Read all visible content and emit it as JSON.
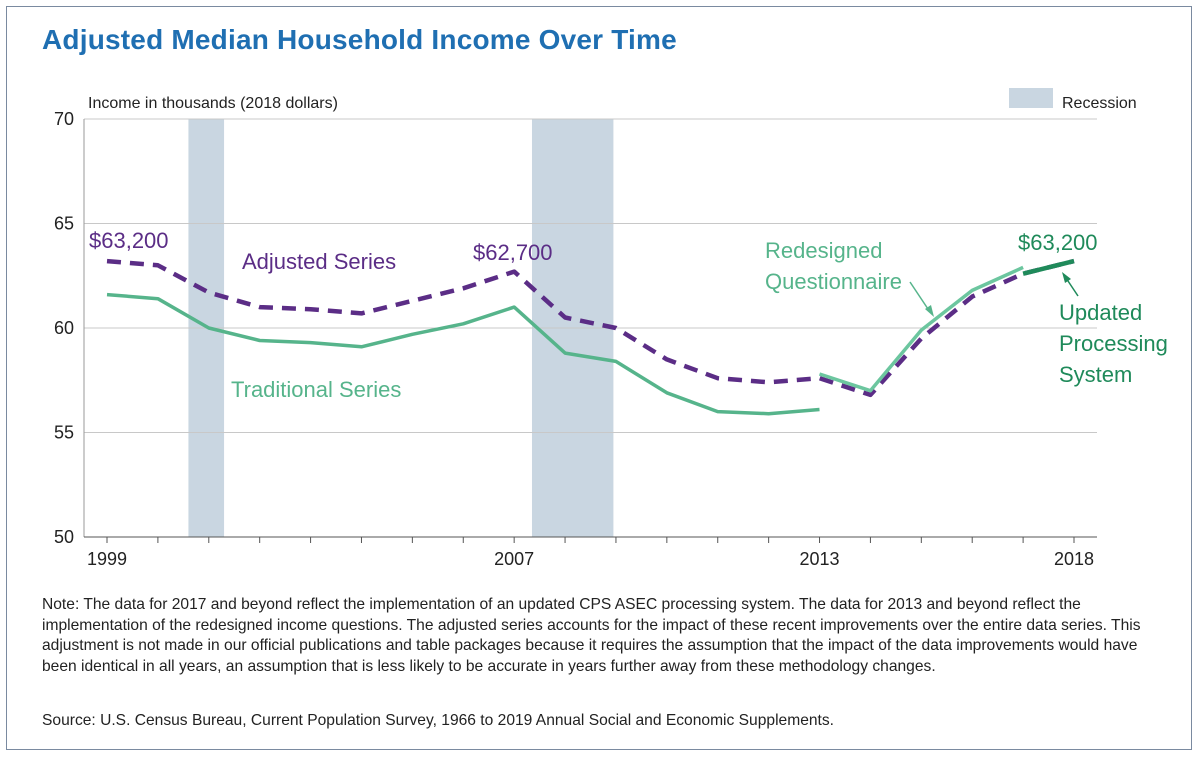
{
  "title": "Adjusted Median Household Income Over Time",
  "chart_data": {
    "type": "line",
    "ylabel": "Income in thousands (2018  dollars)",
    "ylim": [
      50,
      70
    ],
    "yticks": [
      50,
      55,
      60,
      65,
      70
    ],
    "xlim": [
      1999,
      2018
    ],
    "xticks": [
      1999,
      2007,
      2013,
      2018
    ],
    "grid": true,
    "legend": {
      "label": "Recession",
      "placement": "top-right"
    },
    "recessions": [
      [
        2000.6,
        2001.3
      ],
      [
        2007.35,
        2008.95
      ]
    ],
    "series": [
      {
        "name": "Adjusted Series",
        "style": "dashed",
        "color": "#5b2d86",
        "x": [
          1999,
          2000,
          2001,
          2002,
          2003,
          2004,
          2005,
          2006,
          2007,
          2008,
          2009,
          2010,
          2011,
          2012,
          2013,
          2014,
          2015,
          2016,
          2017,
          2018
        ],
        "values": [
          63.2,
          63.0,
          61.7,
          61.0,
          60.9,
          60.7,
          61.3,
          61.9,
          62.7,
          60.5,
          60.0,
          58.5,
          57.6,
          57.4,
          57.6,
          56.8,
          59.5,
          61.5,
          62.6,
          63.2
        ]
      },
      {
        "name": "Traditional Series",
        "style": "solid",
        "color": "#56b48b",
        "x": [
          1999,
          2000,
          2001,
          2002,
          2003,
          2004,
          2005,
          2006,
          2007,
          2008,
          2009,
          2010,
          2011,
          2012,
          2013
        ],
        "values": [
          61.6,
          61.4,
          60.0,
          59.4,
          59.3,
          59.1,
          59.7,
          60.2,
          61.0,
          58.8,
          58.4,
          56.9,
          56.0,
          55.9,
          56.1
        ]
      },
      {
        "name": "Redesigned Questionnaire",
        "style": "solid",
        "color": "#6cc69f",
        "x": [
          2013,
          2014,
          2015,
          2016,
          2017
        ],
        "values": [
          57.8,
          57.0,
          59.9,
          61.8,
          62.9
        ]
      },
      {
        "name": "Updated Processing System",
        "style": "solid",
        "color": "#1f8a5a",
        "x": [
          2017,
          2018
        ],
        "values": [
          62.6,
          63.2
        ]
      }
    ],
    "annotations": [
      {
        "text": "$63,200",
        "x": 1999,
        "y": 63.2,
        "color": "#5b2d86"
      },
      {
        "text": "Adjusted Series",
        "color": "#5b2d86"
      },
      {
        "text": "$62,700",
        "x": 2007,
        "y": 62.7,
        "color": "#5b2d86"
      },
      {
        "text": "Traditional Series",
        "color": "#56b48b"
      },
      {
        "text": "Redesigned",
        "color": "#56b48b"
      },
      {
        "text": "Questionnaire",
        "color": "#56b48b"
      },
      {
        "text": "$63,200",
        "x": 2018,
        "y": 63.2,
        "color": "#1f8a5a"
      },
      {
        "text": "Updated",
        "color": "#1f8a5a"
      },
      {
        "text": "Processing",
        "color": "#1f8a5a"
      },
      {
        "text": "System",
        "color": "#1f8a5a"
      }
    ]
  },
  "note": "Note: The data for 2017 and beyond reflect the implementation of an updated CPS ASEC processing system. The data for 2013 and beyond reflect the implementation of the redesigned income questions. The adjusted series accounts for the impact of these recent improvements over the entire data series. This adjustment is not made in our official publications and table packages because it requires the assumption that the impact of the data improvements would have been identical in all years, an assumption that is less likely to be accurate in years further away from these methodology changes.",
  "source": "Source: U.S. Census Bureau, Current Population Survey, 1966 to 2019 Annual Social and Economic Supplements."
}
